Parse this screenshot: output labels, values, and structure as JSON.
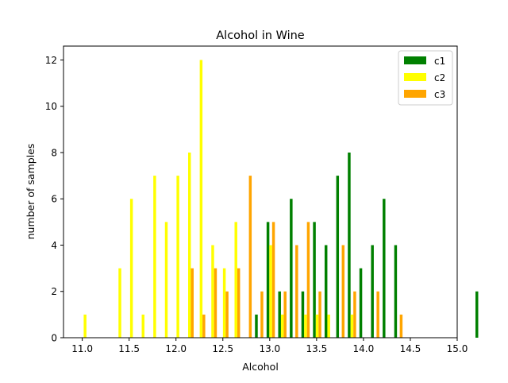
{
  "chart_data": {
    "type": "bar",
    "title": "Alcohol in Wine",
    "xlabel": "Alcohol",
    "ylabel": "number of samples",
    "xlim": [
      10.8,
      15.0
    ],
    "ylim": [
      0,
      12.6
    ],
    "xticks": [
      "11.0",
      "11.5",
      "12.0",
      "12.5",
      "13.0",
      "13.5",
      "14.0",
      "14.5",
      "15.0"
    ],
    "xtick_values": [
      11.0,
      11.5,
      12.0,
      12.5,
      13.0,
      13.5,
      14.0,
      14.5,
      15.0
    ],
    "yticks": [
      "0",
      "2",
      "4",
      "6",
      "8",
      "10",
      "12"
    ],
    "ytick_values": [
      0,
      2,
      4,
      6,
      8,
      10,
      12
    ],
    "grid": false,
    "legend_position": "top-right",
    "bin_start": 11.03,
    "bin_width": 0.1238,
    "series": [
      {
        "name": "c1",
        "color": "#008000",
        "offset": -1,
        "values": [
          0,
          0,
          0,
          0,
          0,
          0,
          0,
          0,
          0,
          0,
          0,
          0,
          0,
          0,
          0,
          1,
          5,
          2,
          6,
          2,
          5,
          4,
          7,
          8,
          3,
          4,
          6,
          4,
          0,
          0,
          0,
          0,
          0,
          0,
          2
        ]
      },
      {
        "name": "c2",
        "color": "#ffff00",
        "offset": 0,
        "values": [
          1,
          0,
          0,
          3,
          6,
          1,
          7,
          5,
          7,
          8,
          12,
          4,
          3,
          5,
          0,
          0,
          4,
          1,
          0,
          1,
          1,
          1,
          0,
          1,
          0,
          0,
          0,
          0,
          0,
          0,
          0,
          0,
          0,
          0,
          0
        ]
      },
      {
        "name": "c3",
        "color": "#ffa500",
        "offset": 1,
        "values": [
          0,
          0,
          0,
          0,
          0,
          0,
          0,
          0,
          0,
          3,
          1,
          3,
          2,
          3,
          7,
          2,
          5,
          2,
          4,
          5,
          2,
          0,
          4,
          2,
          0,
          2,
          0,
          1,
          0,
          0,
          0,
          0,
          0,
          0,
          0
        ]
      }
    ]
  }
}
